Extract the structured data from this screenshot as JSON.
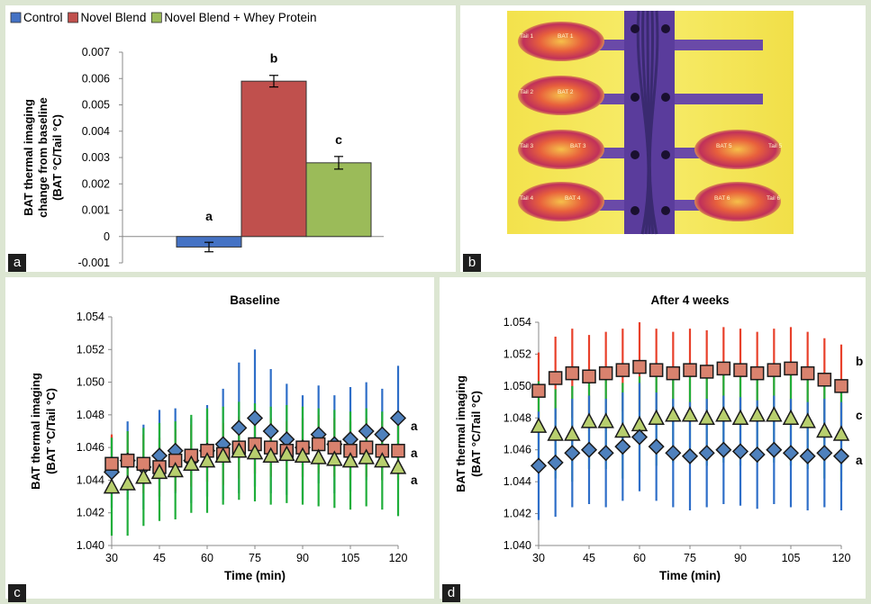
{
  "panels": {
    "a": {
      "label": "a"
    },
    "b": {
      "label": "b"
    },
    "c": {
      "label": "c"
    },
    "d": {
      "label": "d"
    }
  },
  "thermal_labels": [
    "Tail 1",
    "BAT 1",
    "Tail 2",
    "BAT 2",
    "Tail 3",
    "BAT 3",
    "BAT 5",
    "Tail 5",
    "Tail 4",
    "BAT 4",
    "BAT 6",
    "Tail 6"
  ],
  "chart_data": [
    {
      "id": "a",
      "type": "bar",
      "legend_position": "top",
      "categories": [
        "Control",
        "Novel Blend",
        "Novel Blend + Whey Protein"
      ],
      "values": [
        -0.0004,
        0.0059,
        0.0028
      ],
      "errors": [
        0.00018,
        0.00022,
        0.00024
      ],
      "colors": [
        "#4472c4",
        "#c0504d",
        "#9bbb59"
      ],
      "letters": [
        "a",
        "b",
        "c"
      ],
      "ylabel": "BAT thermal imaging change from baseline (BAT °C/Tail °C)",
      "ylabel_lines": [
        "BAT thermal imaging",
        "change from baseline",
        "(BAT °C/Tail °C)"
      ],
      "ylim": [
        -0.001,
        0.007
      ],
      "yticks": [
        "0.007",
        "0.006",
        "0.005",
        "0.004",
        "0.003",
        "0.002",
        "0.001",
        "0",
        "-0.001"
      ],
      "legend": [
        "Control",
        "Novel Blend",
        "Novel Blend + Whey Protein"
      ]
    },
    {
      "id": "c",
      "type": "scatter",
      "title": "Baseline",
      "xlabel": "Time (min)",
      "ylabel": "BAT thermal imaging (BAT °C/Tail °C)",
      "ylabel_lines": [
        "BAT thermal imaging",
        "(BAT °C/Tail °C)"
      ],
      "xlim": [
        30,
        120
      ],
      "ylim": [
        1.04,
        1.054
      ],
      "xticks": [
        "30",
        "45",
        "60",
        "75",
        "90",
        "105",
        "120"
      ],
      "yticks": [
        "1.054",
        "1.052",
        "1.050",
        "1.048",
        "1.046",
        "1.044",
        "1.042",
        "1.040"
      ],
      "series": [
        {
          "group": "Control",
          "color": "#4f81bd",
          "marker": "diamond",
          "x": [
            30,
            35,
            40,
            45,
            50,
            55,
            60,
            65,
            70,
            75,
            80,
            85,
            90,
            95,
            100,
            105,
            110,
            115,
            120
          ],
          "y": [
            1.0445,
            1.0452,
            1.0448,
            1.0455,
            1.0458,
            1.0452,
            1.0458,
            1.0462,
            1.0472,
            1.0478,
            1.047,
            1.0465,
            1.046,
            1.0468,
            1.0462,
            1.0465,
            1.047,
            1.0468,
            1.0478
          ],
          "err": [
            0.0022,
            0.0024,
            0.0026,
            0.0028,
            0.0026,
            0.0026,
            0.0028,
            0.0034,
            0.004,
            0.0042,
            0.0038,
            0.0034,
            0.0032,
            0.003,
            0.003,
            0.0032,
            0.003,
            0.0028,
            0.0032
          ]
        },
        {
          "group": "Novel Blend",
          "color": "#d9826e",
          "marker": "square",
          "x": [
            30,
            35,
            40,
            45,
            50,
            55,
            60,
            65,
            70,
            75,
            80,
            85,
            90,
            95,
            100,
            105,
            110,
            115,
            120
          ],
          "y": [
            1.045,
            1.0452,
            1.045,
            1.0448,
            1.0452,
            1.0455,
            1.0458,
            1.0456,
            1.046,
            1.0462,
            1.046,
            1.0458,
            1.046,
            1.0462,
            1.046,
            1.0458,
            1.046,
            1.0458,
            1.0458
          ],
          "err": [
            0.0018,
            0.0018,
            0.0018,
            0.0018,
            0.0019,
            0.0019,
            0.0019,
            0.0019,
            0.0019,
            0.0018,
            0.0018,
            0.0018,
            0.0018,
            0.0018,
            0.0018,
            0.0018,
            0.0018,
            0.0018,
            0.0018
          ]
        },
        {
          "group": "Novel Blend + Whey Protein",
          "color": "#b8cf6e",
          "marker": "triangle",
          "x": [
            30,
            35,
            40,
            45,
            50,
            55,
            60,
            65,
            70,
            75,
            80,
            85,
            90,
            95,
            100,
            105,
            110,
            115,
            120
          ],
          "y": [
            1.0436,
            1.0438,
            1.0442,
            1.0445,
            1.0446,
            1.045,
            1.0452,
            1.0455,
            1.0458,
            1.0457,
            1.0455,
            1.0456,
            1.0455,
            1.0454,
            1.0453,
            1.0452,
            1.0454,
            1.0452,
            1.0448
          ],
          "err": [
            0.003,
            0.0032,
            0.003,
            0.003,
            0.003,
            0.003,
            0.0032,
            0.003,
            0.003,
            0.003,
            0.003,
            0.003,
            0.003,
            0.003,
            0.003,
            0.003,
            0.003,
            0.003,
            0.003
          ]
        }
      ],
      "letters": [
        "a",
        "a",
        "a"
      ]
    },
    {
      "id": "d",
      "type": "scatter",
      "title": "After 4 weeks",
      "xlabel": "Time (min)",
      "ylabel": "BAT thermal imaging (BAT °C/Tail °C)",
      "ylabel_lines": [
        "BAT thermal imaging",
        "(BAT °C/Tail °C)"
      ],
      "xlim": [
        30,
        120
      ],
      "ylim": [
        1.04,
        1.054
      ],
      "xticks": [
        "30",
        "45",
        "60",
        "75",
        "90",
        "105",
        "120"
      ],
      "yticks": [
        "1.054",
        "1.052",
        "1.050",
        "1.048",
        "1.046",
        "1.044",
        "1.042",
        "1.040"
      ],
      "series": [
        {
          "group": "Novel Blend",
          "color": "#d9826e",
          "marker": "square",
          "x": [
            30,
            35,
            40,
            45,
            50,
            55,
            60,
            65,
            70,
            75,
            80,
            85,
            90,
            95,
            100,
            105,
            110,
            115,
            120
          ],
          "y": [
            1.0497,
            1.0505,
            1.0508,
            1.0506,
            1.0508,
            1.051,
            1.0512,
            1.051,
            1.0508,
            1.051,
            1.0509,
            1.0511,
            1.051,
            1.0508,
            1.051,
            1.0511,
            1.0508,
            1.0504,
            1.05
          ],
          "err": [
            0.0024,
            0.0026,
            0.0028,
            0.0026,
            0.0026,
            0.0026,
            0.0028,
            0.0026,
            0.0026,
            0.0026,
            0.0026,
            0.0026,
            0.0026,
            0.0026,
            0.0026,
            0.0026,
            0.0026,
            0.0026,
            0.0026
          ]
        },
        {
          "group": "Novel Blend + Whey Protein",
          "color": "#b8cf6e",
          "marker": "triangle",
          "x": [
            30,
            35,
            40,
            45,
            50,
            55,
            60,
            65,
            70,
            75,
            80,
            85,
            90,
            95,
            100,
            105,
            110,
            115,
            120
          ],
          "y": [
            1.0475,
            1.047,
            1.047,
            1.0478,
            1.0478,
            1.0472,
            1.0476,
            1.048,
            1.0482,
            1.0482,
            1.048,
            1.0482,
            1.048,
            1.0482,
            1.0482,
            1.048,
            1.0478,
            1.0472,
            1.047
          ],
          "err": [
            0.0028,
            0.0028,
            0.003,
            0.003,
            0.003,
            0.003,
            0.003,
            0.003,
            0.003,
            0.003,
            0.003,
            0.003,
            0.003,
            0.003,
            0.003,
            0.003,
            0.003,
            0.003,
            0.003
          ]
        },
        {
          "group": "Control",
          "color": "#4f81bd",
          "marker": "diamond",
          "x": [
            30,
            35,
            40,
            45,
            50,
            55,
            60,
            65,
            70,
            75,
            80,
            85,
            90,
            95,
            100,
            105,
            110,
            115,
            120
          ],
          "y": [
            1.045,
            1.0452,
            1.0458,
            1.046,
            1.0458,
            1.0462,
            1.0468,
            1.0462,
            1.0458,
            1.0456,
            1.0458,
            1.046,
            1.0459,
            1.0457,
            1.046,
            1.0458,
            1.0456,
            1.0458,
            1.0456
          ],
          "err": [
            0.0034,
            0.0034,
            0.0034,
            0.0034,
            0.0034,
            0.0034,
            0.0034,
            0.0034,
            0.0034,
            0.0034,
            0.0034,
            0.0034,
            0.0034,
            0.0034,
            0.0034,
            0.0034,
            0.0034,
            0.0034,
            0.0034
          ]
        }
      ],
      "letters": [
        "b",
        "c",
        "a"
      ]
    }
  ]
}
